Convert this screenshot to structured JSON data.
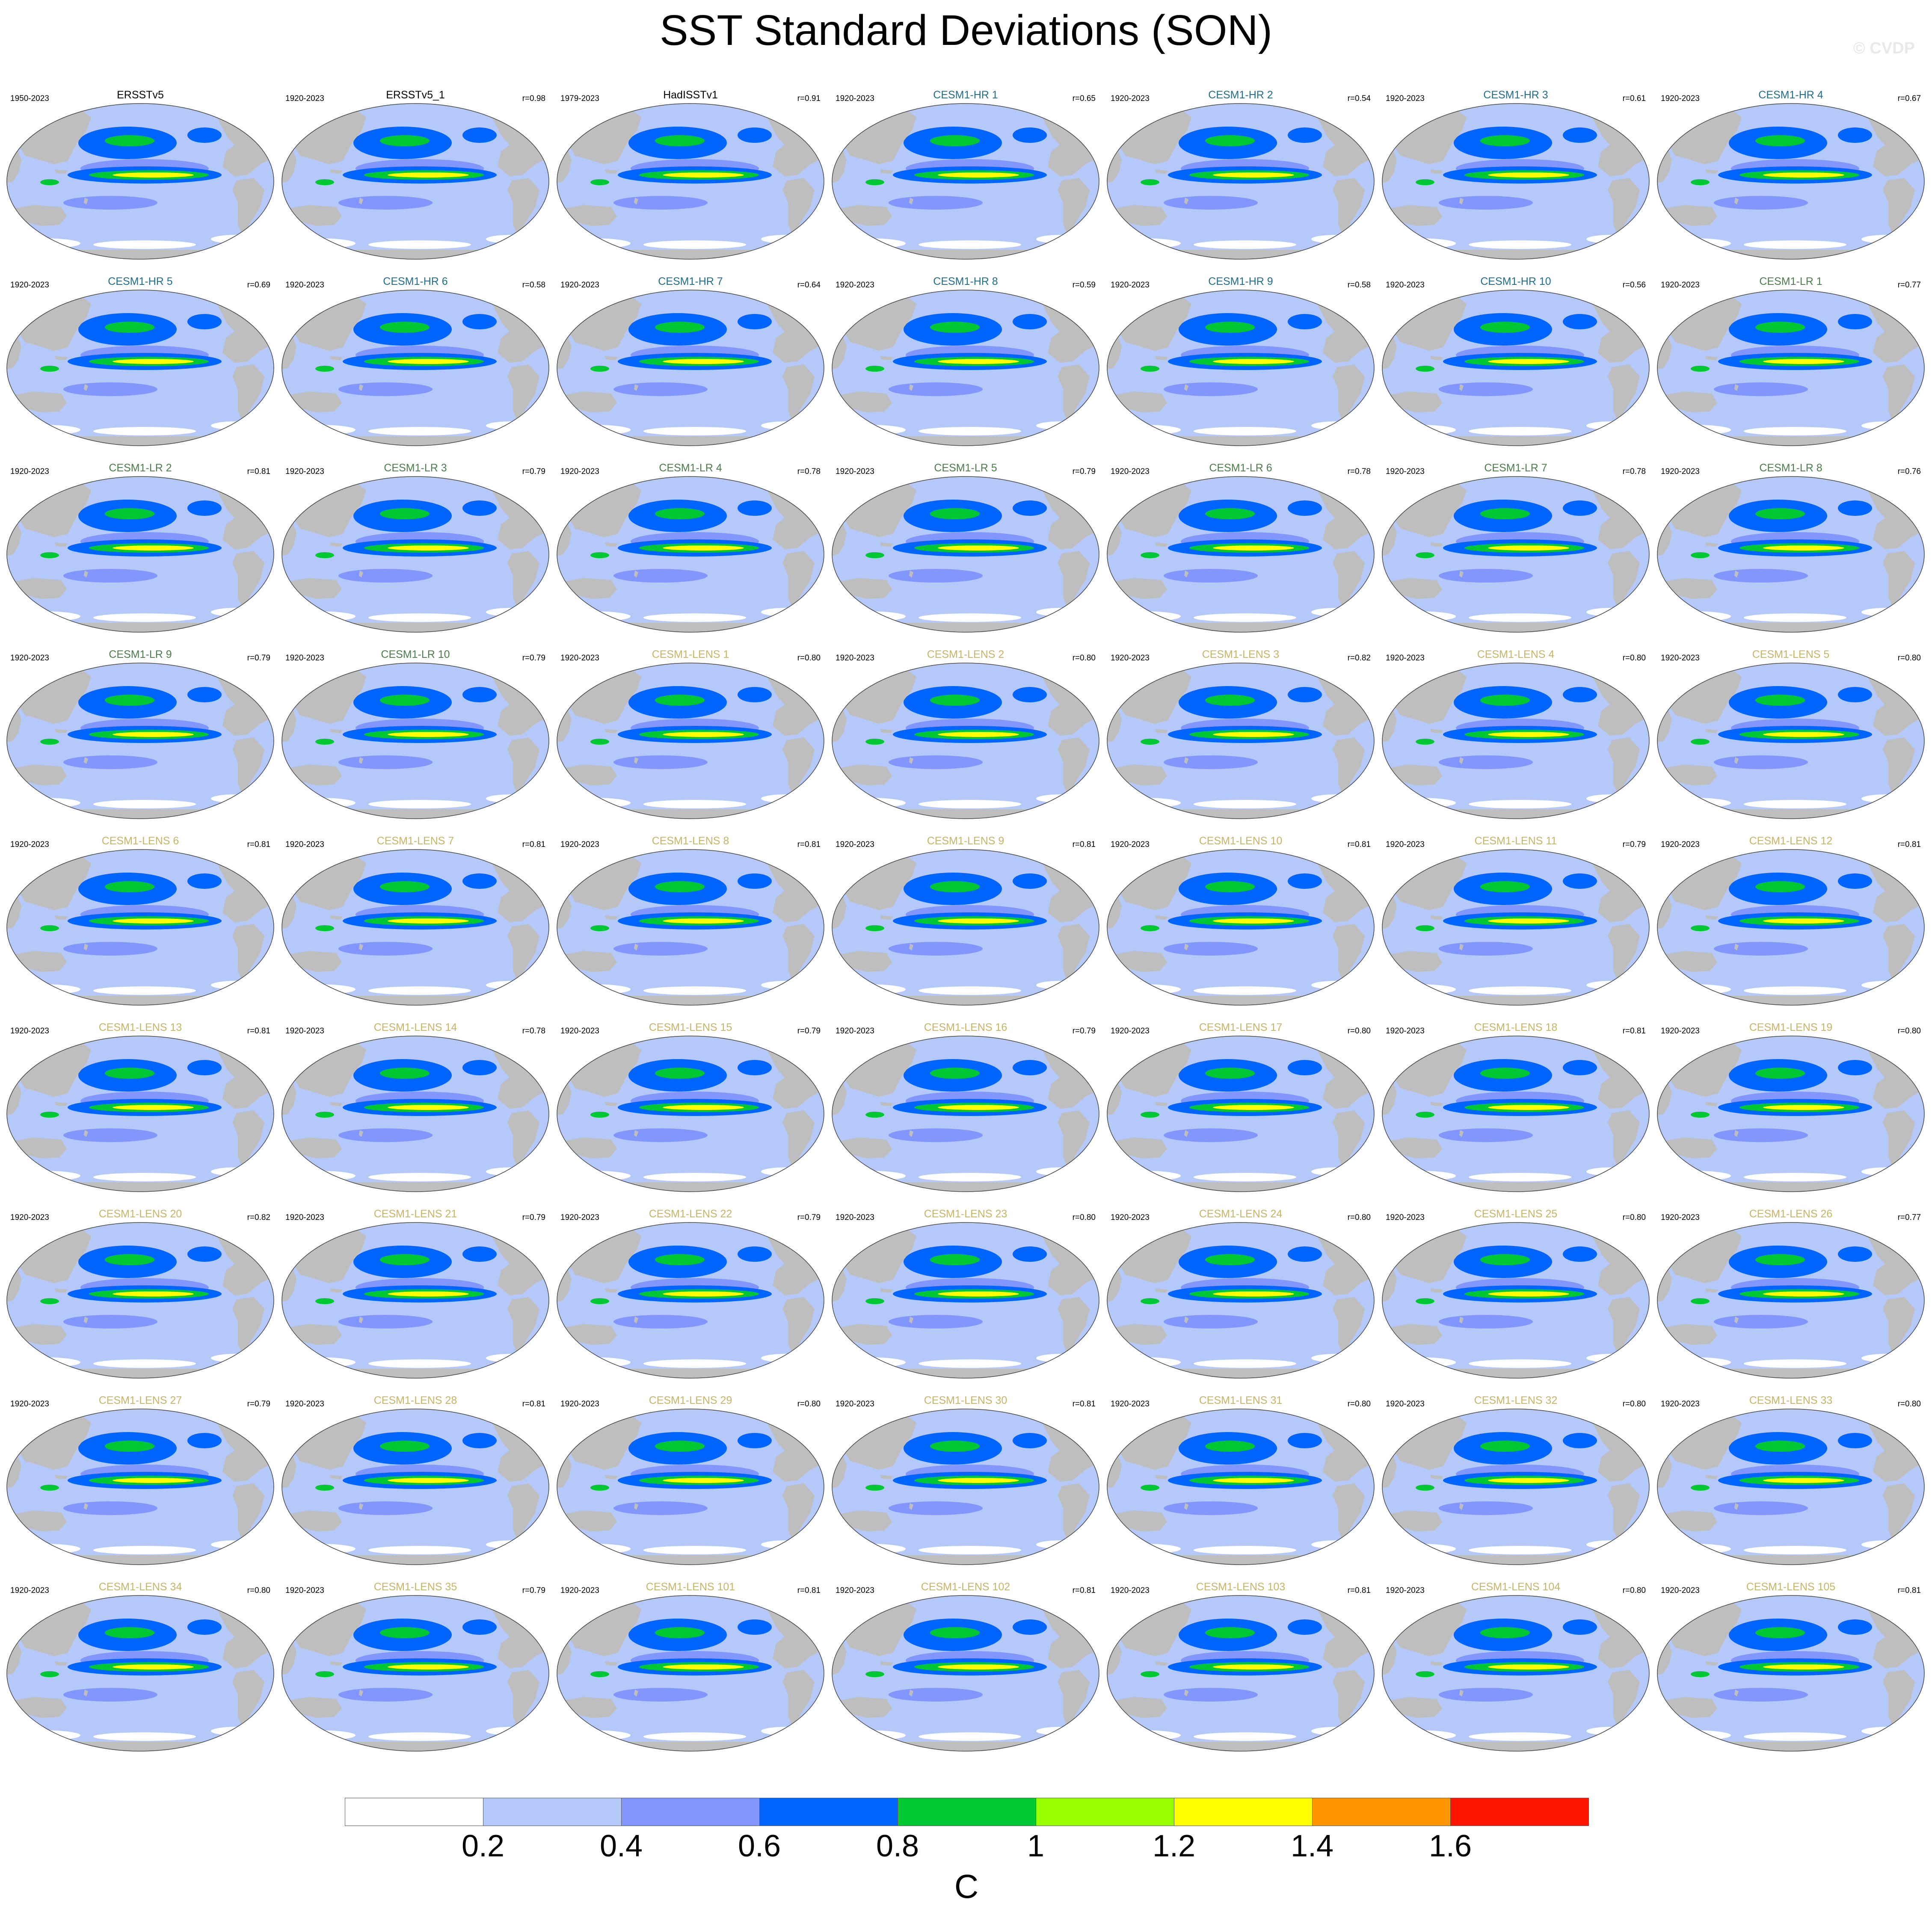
{
  "title": "SST Standard Deviations (SON)",
  "watermark": "© CVDP",
  "colors": {
    "land": "#bebebe",
    "ocean_base": "#b4c8fa",
    "obs_label": "#000000",
    "hr_label": "#1e6e8c",
    "lr_label": "#4a7d4a",
    "lens_label": "#c8b464"
  },
  "panels": [
    {
      "name": "ERSSTv5",
      "years": "1950-2023",
      "r": "",
      "group": "obs"
    },
    {
      "name": "ERSSTv5_1",
      "years": "1920-2023",
      "r": "r=0.98",
      "group": "obs"
    },
    {
      "name": "HadISSTv1",
      "years": "1979-2023",
      "r": "r=0.91",
      "group": "obs"
    },
    {
      "name": "CESM1-HR 1",
      "years": "1920-2023",
      "r": "r=0.65",
      "group": "hr"
    },
    {
      "name": "CESM1-HR 2",
      "years": "1920-2023",
      "r": "r=0.54",
      "group": "hr"
    },
    {
      "name": "CESM1-HR 3",
      "years": "1920-2023",
      "r": "r=0.61",
      "group": "hr"
    },
    {
      "name": "CESM1-HR 4",
      "years": "1920-2023",
      "r": "r=0.67",
      "group": "hr"
    },
    {
      "name": "CESM1-HR 5",
      "years": "1920-2023",
      "r": "r=0.69",
      "group": "hr"
    },
    {
      "name": "CESM1-HR 6",
      "years": "1920-2023",
      "r": "r=0.58",
      "group": "hr"
    },
    {
      "name": "CESM1-HR 7",
      "years": "1920-2023",
      "r": "r=0.64",
      "group": "hr"
    },
    {
      "name": "CESM1-HR 8",
      "years": "1920-2023",
      "r": "r=0.59",
      "group": "hr"
    },
    {
      "name": "CESM1-HR 9",
      "years": "1920-2023",
      "r": "r=0.58",
      "group": "hr"
    },
    {
      "name": "CESM1-HR 10",
      "years": "1920-2023",
      "r": "r=0.56",
      "group": "hr"
    },
    {
      "name": "CESM1-LR 1",
      "years": "1920-2023",
      "r": "r=0.77",
      "group": "lr"
    },
    {
      "name": "CESM1-LR 2",
      "years": "1920-2023",
      "r": "r=0.81",
      "group": "lr"
    },
    {
      "name": "CESM1-LR 3",
      "years": "1920-2023",
      "r": "r=0.79",
      "group": "lr"
    },
    {
      "name": "CESM1-LR 4",
      "years": "1920-2023",
      "r": "r=0.78",
      "group": "lr"
    },
    {
      "name": "CESM1-LR 5",
      "years": "1920-2023",
      "r": "r=0.79",
      "group": "lr"
    },
    {
      "name": "CESM1-LR 6",
      "years": "1920-2023",
      "r": "r=0.78",
      "group": "lr"
    },
    {
      "name": "CESM1-LR 7",
      "years": "1920-2023",
      "r": "r=0.78",
      "group": "lr"
    },
    {
      "name": "CESM1-LR 8",
      "years": "1920-2023",
      "r": "r=0.76",
      "group": "lr"
    },
    {
      "name": "CESM1-LR 9",
      "years": "1920-2023",
      "r": "r=0.79",
      "group": "lr"
    },
    {
      "name": "CESM1-LR 10",
      "years": "1920-2023",
      "r": "r=0.79",
      "group": "lr"
    },
    {
      "name": "CESM1-LENS 1",
      "years": "1920-2023",
      "r": "r=0.80",
      "group": "lens"
    },
    {
      "name": "CESM1-LENS 2",
      "years": "1920-2023",
      "r": "r=0.80",
      "group": "lens"
    },
    {
      "name": "CESM1-LENS 3",
      "years": "1920-2023",
      "r": "r=0.82",
      "group": "lens"
    },
    {
      "name": "CESM1-LENS 4",
      "years": "1920-2023",
      "r": "r=0.80",
      "group": "lens"
    },
    {
      "name": "CESM1-LENS 5",
      "years": "1920-2023",
      "r": "r=0.80",
      "group": "lens"
    },
    {
      "name": "CESM1-LENS 6",
      "years": "1920-2023",
      "r": "r=0.81",
      "group": "lens"
    },
    {
      "name": "CESM1-LENS 7",
      "years": "1920-2023",
      "r": "r=0.81",
      "group": "lens"
    },
    {
      "name": "CESM1-LENS 8",
      "years": "1920-2023",
      "r": "r=0.81",
      "group": "lens"
    },
    {
      "name": "CESM1-LENS 9",
      "years": "1920-2023",
      "r": "r=0.81",
      "group": "lens"
    },
    {
      "name": "CESM1-LENS 10",
      "years": "1920-2023",
      "r": "r=0.81",
      "group": "lens"
    },
    {
      "name": "CESM1-LENS 11",
      "years": "1920-2023",
      "r": "r=0.79",
      "group": "lens"
    },
    {
      "name": "CESM1-LENS 12",
      "years": "1920-2023",
      "r": "r=0.81",
      "group": "lens"
    },
    {
      "name": "CESM1-LENS 13",
      "years": "1920-2023",
      "r": "r=0.81",
      "group": "lens"
    },
    {
      "name": "CESM1-LENS 14",
      "years": "1920-2023",
      "r": "r=0.78",
      "group": "lens"
    },
    {
      "name": "CESM1-LENS 15",
      "years": "1920-2023",
      "r": "r=0.79",
      "group": "lens"
    },
    {
      "name": "CESM1-LENS 16",
      "years": "1920-2023",
      "r": "r=0.79",
      "group": "lens"
    },
    {
      "name": "CESM1-LENS 17",
      "years": "1920-2023",
      "r": "r=0.80",
      "group": "lens"
    },
    {
      "name": "CESM1-LENS 18",
      "years": "1920-2023",
      "r": "r=0.81",
      "group": "lens"
    },
    {
      "name": "CESM1-LENS 19",
      "years": "1920-2023",
      "r": "r=0.80",
      "group": "lens"
    },
    {
      "name": "CESM1-LENS 20",
      "years": "1920-2023",
      "r": "r=0.82",
      "group": "lens"
    },
    {
      "name": "CESM1-LENS 21",
      "years": "1920-2023",
      "r": "r=0.79",
      "group": "lens"
    },
    {
      "name": "CESM1-LENS 22",
      "years": "1920-2023",
      "r": "r=0.79",
      "group": "lens"
    },
    {
      "name": "CESM1-LENS 23",
      "years": "1920-2023",
      "r": "r=0.80",
      "group": "lens"
    },
    {
      "name": "CESM1-LENS 24",
      "years": "1920-2023",
      "r": "r=0.80",
      "group": "lens"
    },
    {
      "name": "CESM1-LENS 25",
      "years": "1920-2023",
      "r": "r=0.80",
      "group": "lens"
    },
    {
      "name": "CESM1-LENS 26",
      "years": "1920-2023",
      "r": "r=0.77",
      "group": "lens"
    },
    {
      "name": "CESM1-LENS 27",
      "years": "1920-2023",
      "r": "r=0.79",
      "group": "lens"
    },
    {
      "name": "CESM1-LENS 28",
      "years": "1920-2023",
      "r": "r=0.81",
      "group": "lens"
    },
    {
      "name": "CESM1-LENS 29",
      "years": "1920-2023",
      "r": "r=0.80",
      "group": "lens"
    },
    {
      "name": "CESM1-LENS 30",
      "years": "1920-2023",
      "r": "r=0.81",
      "group": "lens"
    },
    {
      "name": "CESM1-LENS 31",
      "years": "1920-2023",
      "r": "r=0.80",
      "group": "lens"
    },
    {
      "name": "CESM1-LENS 32",
      "years": "1920-2023",
      "r": "r=0.80",
      "group": "lens"
    },
    {
      "name": "CESM1-LENS 33",
      "years": "1920-2023",
      "r": "r=0.80",
      "group": "lens"
    },
    {
      "name": "CESM1-LENS 34",
      "years": "1920-2023",
      "r": "r=0.80",
      "group": "lens"
    },
    {
      "name": "CESM1-LENS 35",
      "years": "1920-2023",
      "r": "r=0.79",
      "group": "lens"
    },
    {
      "name": "CESM1-LENS 101",
      "years": "1920-2023",
      "r": "r=0.81",
      "group": "lens"
    },
    {
      "name": "CESM1-LENS 102",
      "years": "1920-2023",
      "r": "r=0.81",
      "group": "lens"
    },
    {
      "name": "CESM1-LENS 103",
      "years": "1920-2023",
      "r": "r=0.81",
      "group": "lens"
    },
    {
      "name": "CESM1-LENS 104",
      "years": "1920-2023",
      "r": "r=0.80",
      "group": "lens"
    },
    {
      "name": "CESM1-LENS 105",
      "years": "1920-2023",
      "r": "r=0.81",
      "group": "lens"
    }
  ],
  "colorbar": {
    "unit": "C",
    "ticks": [
      "0.2",
      "0.4",
      "0.6",
      "0.8",
      "1",
      "1.2",
      "1.4",
      "1.6"
    ],
    "colors": [
      "#ffffff",
      "#b4c8fa",
      "#8296ff",
      "#0064ff",
      "#00c832",
      "#96ff00",
      "#ffff00",
      "#ff9600",
      "#ff1400"
    ]
  }
}
